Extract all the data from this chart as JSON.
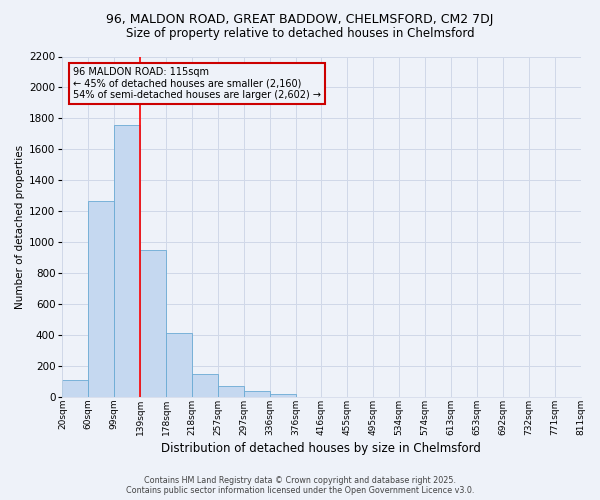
{
  "title1": "96, MALDON ROAD, GREAT BADDOW, CHELMSFORD, CM2 7DJ",
  "title2": "Size of property relative to detached houses in Chelmsford",
  "xlabel": "Distribution of detached houses by size in Chelmsford",
  "ylabel": "Number of detached properties",
  "footer1": "Contains HM Land Registry data © Crown copyright and database right 2025.",
  "footer2": "Contains public sector information licensed under the Open Government Licence v3.0.",
  "annotation_line1": "96 MALDON ROAD: 115sqm",
  "annotation_line2": "← 45% of detached houses are smaller (2,160)",
  "annotation_line3": "54% of semi-detached houses are larger (2,602) →",
  "bar_values": [
    113,
    1270,
    1760,
    950,
    415,
    150,
    75,
    40,
    20,
    0,
    0,
    0,
    0,
    0,
    0,
    0,
    0,
    0,
    0,
    0
  ],
  "bin_labels": [
    "20sqm",
    "60sqm",
    "99sqm",
    "139sqm",
    "178sqm",
    "218sqm",
    "257sqm",
    "297sqm",
    "336sqm",
    "376sqm",
    "416sqm",
    "455sqm",
    "495sqm",
    "534sqm",
    "574sqm",
    "613sqm",
    "653sqm",
    "692sqm",
    "732sqm",
    "771sqm",
    "811sqm"
  ],
  "bar_color": "#c5d8f0",
  "bar_edge_color": "#6aaad4",
  "red_line_bin": 2,
  "ylim": [
    0,
    2200
  ],
  "yticks": [
    0,
    200,
    400,
    600,
    800,
    1000,
    1200,
    1400,
    1600,
    1800,
    2000,
    2200
  ],
  "background_color": "#eef2f9",
  "grid_color": "#d0d8e8",
  "annotation_box_color": "#cc0000",
  "title1_fontsize": 9,
  "title2_fontsize": 8.5
}
